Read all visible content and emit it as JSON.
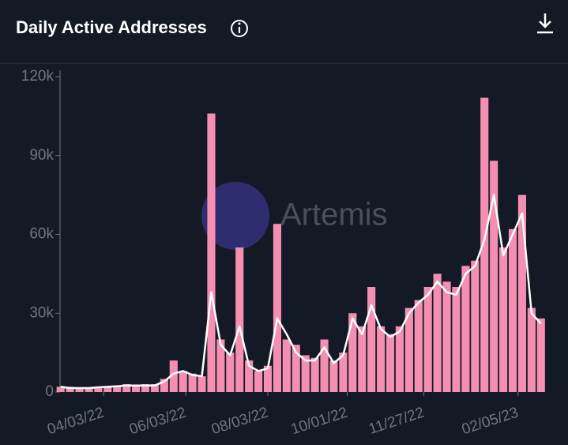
{
  "header": {
    "title": "Daily Active Addresses"
  },
  "watermark": "Artemis",
  "chart_data": {
    "type": "bar-line",
    "x": [
      "03/02/22",
      "03/09/22",
      "03/16/22",
      "03/23/22",
      "03/30/22",
      "04/06/22",
      "04/13/22",
      "04/20/22",
      "04/27/22",
      "05/04/22",
      "05/11/22",
      "05/18/22",
      "05/25/22",
      "06/01/22",
      "06/08/22",
      "06/15/22",
      "06/22/22",
      "06/29/22",
      "07/06/22",
      "07/13/22",
      "07/20/22",
      "07/27/22",
      "08/03/22",
      "08/10/22",
      "08/17/22",
      "08/24/22",
      "08/31/22",
      "09/07/22",
      "09/14/22",
      "09/21/22",
      "09/28/22",
      "10/05/22",
      "10/12/22",
      "10/19/22",
      "10/26/22",
      "11/02/22",
      "11/09/22",
      "11/16/22",
      "11/23/22",
      "11/30/22",
      "12/07/22",
      "12/14/22",
      "12/21/22",
      "12/28/22",
      "01/04/23",
      "01/11/23",
      "01/18/23",
      "01/25/23",
      "02/01/23",
      "02/08/23",
      "02/15/23",
      "02/22/23"
    ],
    "series": [
      {
        "color": "#f48fb1",
        "values": [
          2000,
          2000,
          1500,
          1500,
          2000,
          2000,
          2500,
          3000,
          2500,
          3000,
          3000,
          5000,
          12000,
          8000,
          7000,
          6000,
          106000,
          20000,
          15000,
          55000,
          12000,
          8000,
          10000,
          64000,
          20000,
          18000,
          14000,
          13000,
          20000,
          12000,
          15000,
          30000,
          25000,
          40000,
          25000,
          22000,
          25000,
          32000,
          35000,
          40000,
          45000,
          42000,
          40000,
          48000,
          50000,
          112000,
          88000,
          55000,
          62000,
          75000,
          32000,
          28000
        ]
      },
      {
        "color": "#ffffff",
        "values": [
          2000,
          1500,
          1500,
          1500,
          1800,
          2000,
          2200,
          2500,
          2500,
          2500,
          2500,
          4000,
          7000,
          8000,
          6500,
          6000,
          38000,
          18000,
          14000,
          25000,
          10000,
          8000,
          9000,
          28000,
          22000,
          15000,
          12000,
          12000,
          17000,
          11000,
          14000,
          28000,
          22000,
          33000,
          24000,
          21000,
          23000,
          30000,
          34000,
          37000,
          42000,
          38000,
          37000,
          45000,
          48000,
          58000,
          75000,
          52000,
          60000,
          68000,
          30000,
          26000
        ]
      }
    ],
    "xlim": [
      "03/01/22",
      "02/28/23"
    ],
    "xticks": [
      "04/03/22",
      "06/03/22",
      "08/03/22",
      "10/01/22",
      "11/27/22",
      "02/05/23"
    ],
    "ylim": [
      0,
      120000
    ],
    "yticks": [
      0,
      {
        "value": 30000,
        "label": "30k"
      },
      {
        "value": 60000,
        "label": "60k"
      },
      {
        "value": 90000,
        "label": "90k"
      },
      {
        "value": 120000,
        "label": "120k"
      }
    ]
  }
}
